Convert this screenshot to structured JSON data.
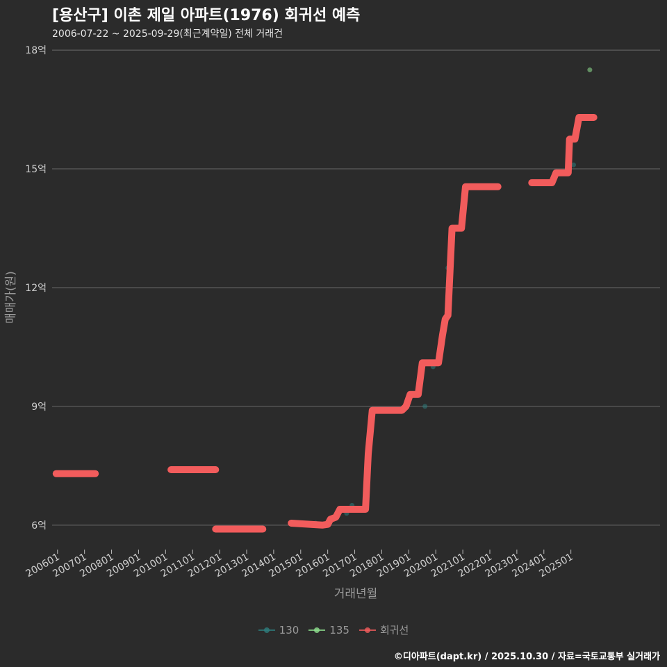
{
  "title": "[용산구] 이촌 제일 아파트(1976) 회귀선 예측",
  "subtitle": "2006-07-22 ~ 2025-09-29(최근계약일) 전체 거래건",
  "caption": "©디아파트(dapt.kr) / 2025.10.30 / 자료=국토교통부 실거래가",
  "chart_data": {
    "type": "line",
    "xlabel": "거래년월",
    "ylabel": "매매가(원)",
    "xlim": [
      2005.8,
      2028.3
    ],
    "ylim": [
      5.4,
      18.3
    ],
    "x_ticks": [
      "200601",
      "200701",
      "200801",
      "200901",
      "201001",
      "201101",
      "201201",
      "201301",
      "201401",
      "201501",
      "201601",
      "201701",
      "201801",
      "201901",
      "202001",
      "202101",
      "202201",
      "202301",
      "202401",
      "202501"
    ],
    "y_ticks": [
      {
        "value": 6,
        "label": "6억"
      },
      {
        "value": 9,
        "label": "9억"
      },
      {
        "value": 12,
        "label": "12억"
      },
      {
        "value": 15,
        "label": "15억"
      },
      {
        "value": 18,
        "label": "18억"
      }
    ],
    "series": [
      {
        "name": "130",
        "color": "#2e7d7d",
        "points": [
          [
            2015.55,
            6.05
          ],
          [
            2016.7,
            6.3
          ],
          [
            2016.9,
            6.5
          ],
          [
            2019.6,
            9.0
          ],
          [
            2019.9,
            10.0
          ],
          [
            2020.45,
            12.5
          ],
          [
            2025.1,
            15.1
          ]
        ]
      },
      {
        "name": "135",
        "color": "#8fe08f",
        "points": [
          [
            2025.7,
            17.5
          ]
        ]
      },
      {
        "name": "회귀선",
        "color": "#f25c5c",
        "segments": [
          [
            [
              2005.95,
              7.3
            ],
            [
              2007.4,
              7.3
            ]
          ],
          [
            [
              2010.2,
              7.4
            ],
            [
              2011.85,
              7.4
            ]
          ],
          [
            [
              2011.85,
              5.9
            ],
            [
              2013.6,
              5.9
            ]
          ],
          [
            [
              2014.65,
              6.05
            ],
            [
              2015.8,
              6.0
            ],
            [
              2016.0,
              6.02
            ],
            [
              2016.1,
              6.15
            ],
            [
              2016.3,
              6.2
            ],
            [
              2016.45,
              6.4
            ],
            [
              2017.4,
              6.4
            ],
            [
              2017.5,
              7.8
            ],
            [
              2017.65,
              8.9
            ],
            [
              2018.75,
              8.9
            ],
            [
              2018.9,
              9.0
            ],
            [
              2019.05,
              9.3
            ],
            [
              2019.35,
              9.3
            ],
            [
              2019.5,
              10.1
            ],
            [
              2020.1,
              10.1
            ],
            [
              2020.25,
              10.8
            ],
            [
              2020.35,
              11.2
            ],
            [
              2020.45,
              11.3
            ],
            [
              2020.6,
              13.5
            ],
            [
              2020.95,
              13.5
            ],
            [
              2021.1,
              14.55
            ],
            [
              2022.3,
              14.55
            ]
          ],
          [
            [
              2023.55,
              14.65
            ],
            [
              2024.3,
              14.65
            ],
            [
              2024.45,
              14.9
            ],
            [
              2024.9,
              14.9
            ],
            [
              2024.95,
              15.75
            ],
            [
              2025.15,
              15.75
            ],
            [
              2025.3,
              16.3
            ],
            [
              2025.85,
              16.3
            ]
          ]
        ]
      }
    ]
  }
}
